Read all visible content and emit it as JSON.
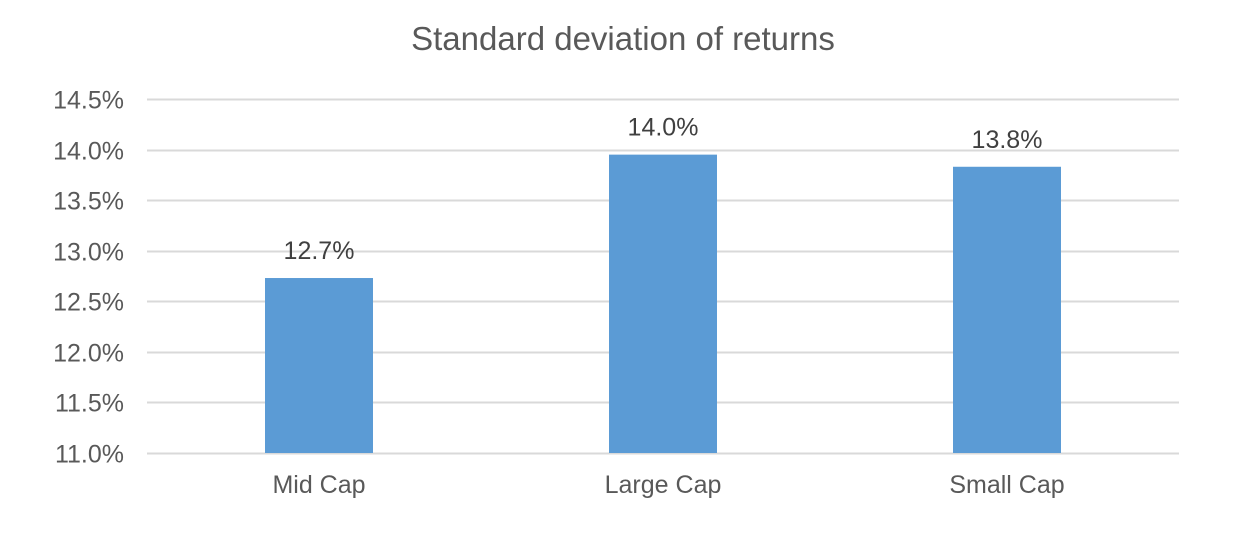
{
  "chart_data": {
    "type": "bar",
    "title": "Standard deviation of returns",
    "xlabel": "",
    "ylabel": "",
    "categories": [
      "Mid Cap",
      "Large Cap",
      "Small Cap"
    ],
    "values": [
      12.73,
      13.95,
      13.83
    ],
    "data_labels": [
      "12.7%",
      "14.0%",
      "13.8%"
    ],
    "ylim": [
      11.0,
      14.5
    ],
    "yticks": [
      11.0,
      11.5,
      12.0,
      12.5,
      13.0,
      13.5,
      14.0,
      14.5
    ],
    "ytick_labels": [
      "11.0%",
      "11.5%",
      "12.0%",
      "12.5%",
      "13.0%",
      "13.5%",
      "14.0%",
      "14.5%"
    ],
    "grid": true,
    "legend": "none",
    "colors": {
      "bar": "#5b9bd5",
      "grid": "#d9d9d9",
      "text": "#595959"
    }
  }
}
